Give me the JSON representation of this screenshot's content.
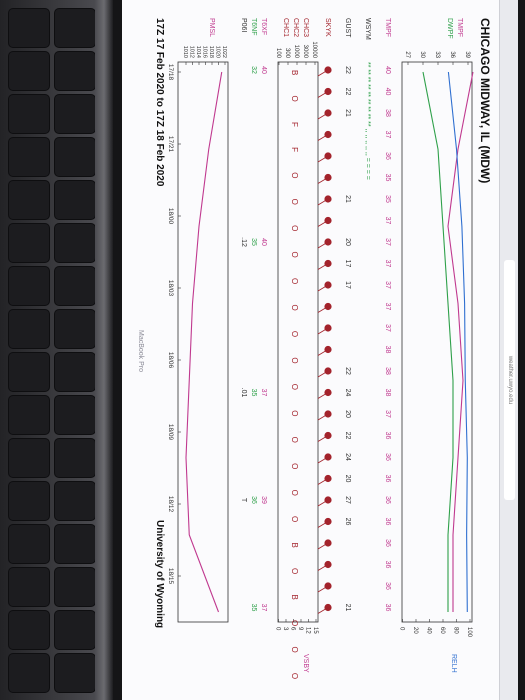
{
  "page": {
    "title": "CHICAGO MIDWAY, IL (MDW)",
    "footer_left": "17Z 17 Feb 2020 to 17Z 18 Feb 2020",
    "footer_right": "University of Wyoming",
    "watermark": "MacBook Pro",
    "url": "weather.uwyo.edu"
  },
  "labels": {
    "tmpf": "TMPF",
    "dwpf": "DWPF",
    "relh": "RELH",
    "tmpf2": "TMPF",
    "wsym": "WSYM",
    "gust": "GUST",
    "skyk": "SKYK",
    "chc3": "CHC3",
    "chc2": "CHC2",
    "chc1": "CHC1",
    "vsby": "VSBY",
    "t6xf": "T6XF",
    "t6nf": "T6NF",
    "p06i": "P06I",
    "pmsl": "PMSL"
  },
  "axes": {
    "temp_ticks": [
      "39",
      "36",
      "33",
      "30",
      "27"
    ],
    "relh_ticks": [
      "100",
      "80",
      "60",
      "40",
      "20",
      "0"
    ],
    "cloud_ticks": [
      "10000",
      "3000",
      "1000",
      "300",
      "100"
    ],
    "vsby_ticks": [
      "15",
      "12",
      "9",
      "6",
      "3",
      "0"
    ],
    "pmsl_ticks": [
      "1022",
      "1020",
      "1018",
      "1016",
      "1014",
      "1012",
      "1010"
    ],
    "time_ticks": [
      "17/18",
      "17/21",
      "18/00",
      "18/03",
      "18/06",
      "18/09",
      "18/12",
      "18/15"
    ]
  },
  "rows": {
    "tmpf": [
      "40",
      "40",
      "38",
      "37",
      "36",
      "35",
      "35",
      "37",
      "37",
      "37",
      "37",
      "37",
      "37",
      "38",
      "38",
      "38",
      "37",
      "36",
      "36",
      "36",
      "36",
      "36",
      "36",
      "36",
      "36",
      "36"
    ],
    "wsym": "** ** ** ** ** ** ** ** ** ,, ,, ,, ,, ,, = = = =",
    "gust": [
      {
        "t": "22",
        "i": 0
      },
      {
        "t": "22",
        "i": 1
      },
      {
        "t": "21",
        "i": 2
      },
      {
        "t": "21",
        "i": 6
      },
      {
        "t": "20",
        "i": 8
      },
      {
        "t": "17",
        "i": 9
      },
      {
        "t": "17",
        "i": 10
      },
      {
        "t": "22",
        "i": 14
      },
      {
        "t": "24",
        "i": 15
      },
      {
        "t": "20",
        "i": 16
      },
      {
        "t": "22",
        "i": 17
      },
      {
        "t": "24",
        "i": 18
      },
      {
        "t": "20",
        "i": 19
      },
      {
        "t": "27",
        "i": 20
      },
      {
        "t": "26",
        "i": 21
      },
      {
        "t": "21",
        "i": 25
      }
    ],
    "clouds": "B O F F O O O O O O O O O O O O O O B O B O O O",
    "t6xf": [
      {
        "t": "40",
        "i": 0
      },
      {
        "t": "40",
        "i": 8
      },
      {
        "t": "37",
        "i": 15
      },
      {
        "t": "39",
        "i": 20
      },
      {
        "t": "37",
        "i": 25
      }
    ],
    "t6nf": [
      {
        "t": "32",
        "i": 0
      },
      {
        "t": "35",
        "i": 8
      },
      {
        "t": "35",
        "i": 15
      },
      {
        "t": "36",
        "i": 20
      },
      {
        "t": "35",
        "i": 25
      }
    ],
    "p06i": [
      {
        "t": ".12",
        "i": 8
      },
      {
        "t": ".01",
        "i": 15
      },
      {
        "t": "T",
        "i": 20
      }
    ]
  },
  "chart_data": {
    "type": "line",
    "x": [
      "17/18",
      "17/21",
      "18/00",
      "18/03",
      "18/06",
      "18/09",
      "18/12",
      "18/15"
    ],
    "series": [
      {
        "name": "TMPF",
        "color": "#c0398f",
        "values": [
          40,
          37,
          35,
          37,
          38,
          37,
          36,
          36
        ]
      },
      {
        "name": "DWPF",
        "color": "#2fa04a",
        "values": [
          30,
          33,
          34,
          35,
          36,
          36,
          35,
          35
        ]
      },
      {
        "name": "RELH",
        "color": "#2f6fd0",
        "values": [
          68,
          80,
          88,
          92,
          93,
          96,
          95,
          96
        ]
      },
      {
        "name": "PMSL",
        "color": "#c0398f",
        "values": [
          1021,
          1017,
          1014,
          1012,
          1011,
          1010,
          1011,
          1020
        ]
      }
    ]
  },
  "colors": {
    "tmpf": "#c0398f",
    "dwpf": "#2fa04a",
    "relh": "#2f6fd0",
    "sky": "#a3232c",
    "vsby": "#c0398f"
  }
}
